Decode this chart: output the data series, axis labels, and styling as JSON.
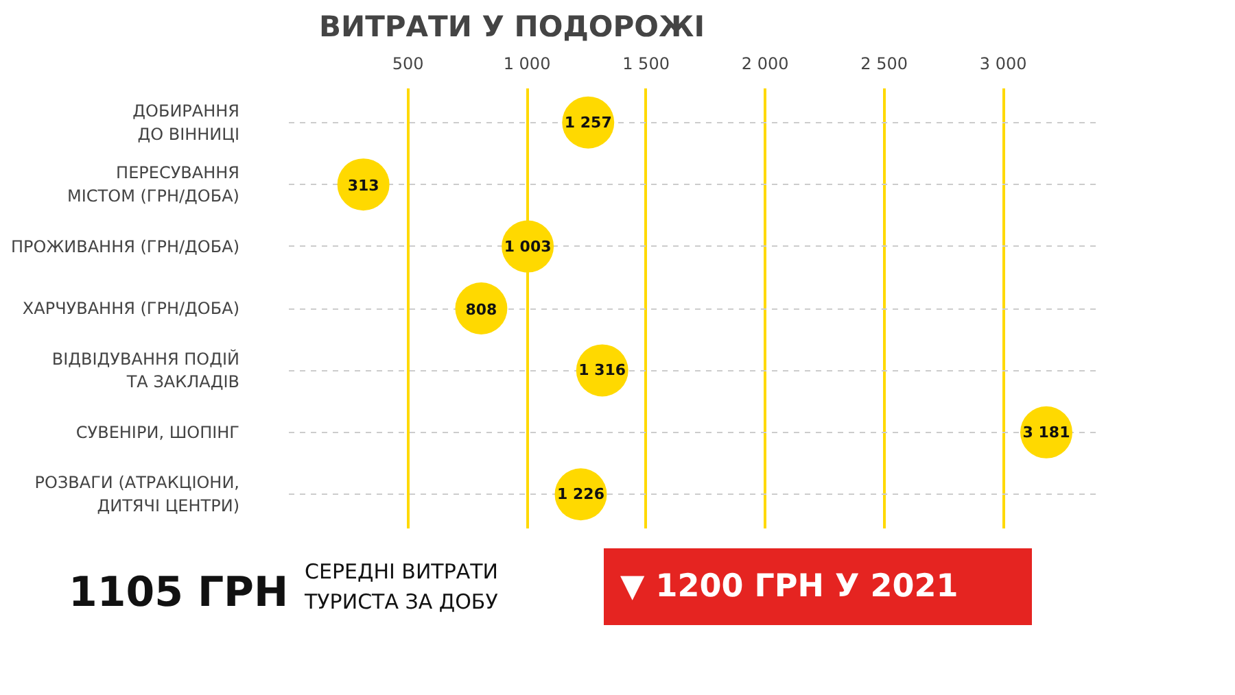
{
  "chart_data": {
    "type": "scatter",
    "orientation": "horizontal",
    "title": "ВИТРАТИ У ПОДОРОЖІ",
    "categories": [
      "ДОБИРАННЯ\nДО ВІННИЦІ",
      "ПЕРЕСУВАННЯ\nМІСТОМ (ГРН/ДОБА)",
      "ПРОЖИВАННЯ (ГРН/ДОБА)",
      "ХАРЧУВАННЯ (ГРН/ДОБА)",
      "ВІДВІДУВАННЯ ПОДІЙ\nТА ЗАКЛАДІВ",
      "СУВЕНІРИ, ШОПІНГ",
      "РОЗВАГИ (АТРАКЦІОНИ,\nДИТЯЧІ ЦЕНТРИ)"
    ],
    "values": [
      1257,
      313,
      1003,
      808,
      1316,
      3181,
      1226
    ],
    "value_labels": [
      "1 257",
      "313",
      "1 003",
      "808",
      "1 316",
      "3 181",
      "1 226"
    ],
    "color": "#ffd900",
    "marker": "circle",
    "grid": true,
    "xlim": [
      0,
      3400
    ],
    "xticks": [
      500,
      {
        "value": 1000,
        "label": "1 000"
      },
      {
        "value": 1500,
        "label": "1 500"
      },
      {
        "value": 2000,
        "label": "2 000"
      },
      {
        "value": 2500,
        "label": "2 500"
      },
      {
        "value": 3000,
        "label": "3 000"
      }
    ],
    "annotations": [
      "1105 ГРН",
      "СЕРЕДНІ ВИТРАТИ\nТУРИСТА ЗА ДОБУ",
      "▼ 1200 ГРН У 2021"
    ]
  }
}
